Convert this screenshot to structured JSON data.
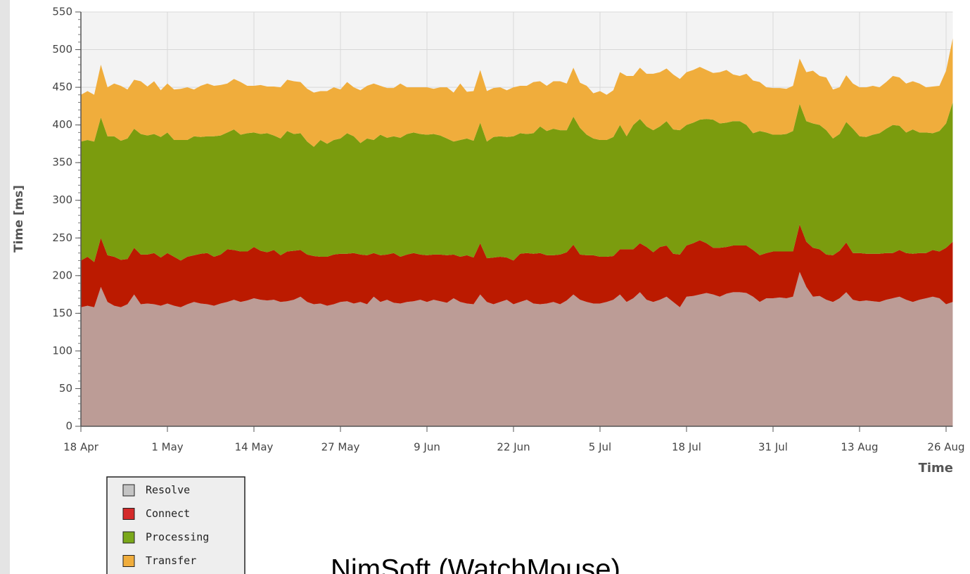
{
  "chart_data": {
    "type": "stacked_area",
    "ylabel": "Time [ms]",
    "xlabel": "Time",
    "caption": "NimSoft (WatchMouse)",
    "categories": [
      "18 Apr",
      null,
      null,
      null,
      null,
      null,
      null,
      null,
      null,
      null,
      null,
      null,
      null,
      "1 May",
      null,
      null,
      null,
      null,
      null,
      null,
      null,
      null,
      null,
      null,
      null,
      null,
      "14 May",
      null,
      null,
      null,
      null,
      null,
      null,
      null,
      null,
      null,
      null,
      null,
      null,
      "27 May",
      null,
      null,
      null,
      null,
      null,
      null,
      null,
      null,
      null,
      null,
      null,
      null,
      "9 Jun",
      null,
      null,
      null,
      null,
      null,
      null,
      null,
      null,
      null,
      null,
      null,
      null,
      "22 Jun",
      null,
      null,
      null,
      null,
      null,
      null,
      null,
      null,
      null,
      null,
      null,
      null,
      "5 Jul",
      null,
      null,
      null,
      null,
      null,
      null,
      null,
      null,
      null,
      null,
      null,
      null,
      "18 Jul",
      null,
      null,
      null,
      null,
      null,
      null,
      null,
      null,
      null,
      null,
      null,
      null,
      "31 Jul",
      null,
      null,
      null,
      null,
      null,
      null,
      null,
      null,
      null,
      null,
      null,
      null,
      "13 Aug",
      null,
      null,
      null,
      null,
      null,
      null,
      null,
      null,
      null,
      null,
      null,
      null,
      "26 Aug",
      null
    ],
    "series": [
      {
        "name": "Resolve",
        "color": "#bc9c96",
        "legend_color": "#c4c4c4",
        "values": [
          158,
          160,
          158,
          185,
          165,
          160,
          158,
          162,
          175,
          162,
          163,
          162,
          160,
          163,
          160,
          158,
          162,
          165,
          163,
          162,
          160,
          163,
          165,
          168,
          165,
          167,
          170,
          168,
          167,
          168,
          165,
          166,
          168,
          172,
          165,
          162,
          163,
          160,
          162,
          165,
          166,
          163,
          165,
          162,
          172,
          165,
          168,
          164,
          163,
          165,
          166,
          168,
          165,
          168,
          166,
          164,
          170,
          165,
          163,
          162,
          175,
          165,
          162,
          165,
          168,
          162,
          165,
          168,
          163,
          162,
          163,
          165,
          162,
          167,
          175,
          168,
          165,
          163,
          163,
          165,
          168,
          175,
          165,
          170,
          178,
          168,
          165,
          168,
          172,
          165,
          158,
          172,
          173,
          175,
          177,
          175,
          172,
          176,
          178,
          178,
          177,
          172,
          165,
          170,
          170,
          171,
          170,
          172,
          205,
          185,
          172,
          173,
          168,
          165,
          170,
          178,
          168,
          166,
          167,
          166,
          165,
          168,
          170,
          172,
          168,
          165,
          168,
          170,
          172,
          170,
          162,
          165
        ]
      },
      {
        "name": "Connect",
        "color": "#bb1a00",
        "legend_color": "#d42a2a",
        "values": [
          62,
          65,
          60,
          65,
          62,
          65,
          63,
          60,
          62,
          66,
          65,
          68,
          64,
          67,
          65,
          62,
          63,
          62,
          66,
          68,
          65,
          65,
          70,
          66,
          67,
          65,
          68,
          65,
          64,
          66,
          62,
          66,
          65,
          62,
          63,
          64,
          62,
          65,
          66,
          64,
          63,
          67,
          63,
          65,
          58,
          62,
          60,
          66,
          62,
          63,
          64,
          60,
          62,
          60,
          62,
          63,
          58,
          60,
          64,
          62,
          68,
          58,
          62,
          60,
          56,
          58,
          64,
          62,
          66,
          68,
          64,
          62,
          66,
          64,
          66,
          60,
          62,
          64,
          62,
          60,
          58,
          60,
          70,
          65,
          65,
          70,
          66,
          70,
          68,
          64,
          70,
          68,
          70,
          72,
          66,
          62,
          65,
          62,
          62,
          62,
          63,
          62,
          62,
          60,
          62,
          61,
          62,
          60,
          63,
          60,
          65,
          62,
          60,
          62,
          63,
          66,
          62,
          64,
          62,
          63,
          64,
          62,
          60,
          62,
          62,
          64,
          62,
          60,
          62,
          62,
          75,
          80
        ]
      },
      {
        "name": "Processing",
        "color": "#7b9c0e",
        "legend_color": "#7aa81a",
        "values": [
          158,
          155,
          160,
          160,
          158,
          160,
          158,
          160,
          158,
          160,
          158,
          158,
          160,
          160,
          155,
          160,
          155,
          158,
          155,
          155,
          160,
          158,
          155,
          160,
          155,
          157,
          152,
          155,
          158,
          152,
          155,
          160,
          155,
          155,
          150,
          145,
          155,
          150,
          152,
          153,
          160,
          155,
          148,
          155,
          150,
          160,
          155,
          155,
          158,
          160,
          160,
          160,
          160,
          160,
          158,
          155,
          150,
          155,
          155,
          155,
          160,
          155,
          160,
          160,
          160,
          165,
          160,
          158,
          160,
          168,
          165,
          168,
          165,
          162,
          170,
          168,
          160,
          155,
          155,
          155,
          158,
          165,
          150,
          165,
          165,
          160,
          162,
          160,
          165,
          165,
          165,
          160,
          160,
          160,
          165,
          170,
          165,
          165,
          165,
          165,
          160,
          155,
          165,
          160,
          155,
          155,
          156,
          160,
          160,
          160,
          165,
          165,
          165,
          155,
          155,
          160,
          165,
          155,
          155,
          158,
          160,
          165,
          170,
          165,
          160,
          165,
          160,
          160,
          155,
          160,
          165,
          185
        ]
      },
      {
        "name": "Transfer",
        "color": "#f0ad3c",
        "legend_color": "#f0ad3c",
        "values": [
          62,
          65,
          62,
          70,
          65,
          70,
          73,
          65,
          65,
          70,
          65,
          70,
          62,
          65,
          67,
          68,
          70,
          62,
          68,
          70,
          67,
          67,
          65,
          67,
          70,
          63,
          62,
          65,
          62,
          65,
          68,
          68,
          70,
          68,
          70,
          72,
          65,
          70,
          70,
          65,
          68,
          65,
          70,
          70,
          75,
          65,
          66,
          64,
          72,
          62,
          60,
          62,
          63,
          60,
          64,
          68,
          65,
          75,
          62,
          66,
          70,
          67,
          65,
          65,
          62,
          65,
          63,
          64,
          68,
          60,
          60,
          63,
          65,
          62,
          65,
          60,
          65,
          60,
          65,
          60,
          62,
          70,
          80,
          65,
          68,
          70,
          75,
          72,
          70,
          73,
          68,
          70,
          70,
          70,
          65,
          62,
          68,
          70,
          62,
          60,
          68,
          70,
          65,
          60,
          62,
          62,
          60,
          60,
          60,
          65,
          70,
          65,
          70,
          65,
          62,
          62,
          60,
          65,
          66,
          65,
          61,
          62,
          65,
          64,
          65,
          64,
          65,
          60,
          62,
          60,
          70,
          85
        ]
      }
    ],
    "ylim": [
      0,
      550
    ],
    "yticks": [
      0,
      50,
      100,
      150,
      200,
      250,
      300,
      350,
      400,
      450,
      500,
      550
    ],
    "grid": true
  }
}
